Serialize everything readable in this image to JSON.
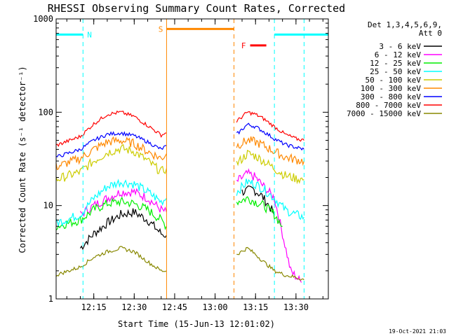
{
  "chart_data": {
    "type": "line",
    "title": "RHESSI Observing Summary Count Rates, Corrected",
    "xlabel": "Start Time (15-Jun-13 12:01:02)",
    "ylabel": "Corrected Count Rate (s⁻¹ detector⁻¹)",
    "y_scale": "log",
    "ylim": [
      1,
      1000
    ],
    "xlim": [
      "12:01:02",
      "13:42:00"
    ],
    "x_ticks": [
      "12:15",
      "12:30",
      "12:45",
      "13:00",
      "13:15",
      "13:30"
    ],
    "y_ticks": [
      "1",
      "10",
      "100",
      "1000"
    ],
    "grid": false,
    "legend_header": [
      "Det 1,3,4,5,6,9,",
      "Att 0"
    ],
    "legend_position": "top-right outside",
    "series": [
      {
        "name": "3 - 6 keV",
        "color": "#000000",
        "x": [
          "12:10",
          "12:15",
          "12:20",
          "12:25",
          "12:30",
          "12:35",
          "12:40",
          "12:42",
          "13:10",
          "13:14",
          "13:17",
          "13:20",
          "13:22"
        ],
        "y": [
          3.5,
          5,
          6.5,
          8,
          8.5,
          7,
          5,
          4.8,
          14,
          15,
          13,
          10,
          8
        ]
      },
      {
        "name": "6 - 12 keV",
        "color": "#ff00ff",
        "x": [
          "12:10",
          "12:15",
          "12:20",
          "12:25",
          "12:30",
          "12:35",
          "12:40",
          "12:42",
          "13:08",
          "13:12",
          "13:15",
          "13:18",
          "13:22",
          "13:25",
          "13:28",
          "13:32"
        ],
        "y": [
          8,
          10,
          12,
          14,
          14,
          12,
          9,
          8.5,
          18,
          22,
          20,
          16,
          12,
          5,
          2,
          1.5
        ]
      },
      {
        "name": "12 - 25 keV",
        "color": "#00ee00",
        "x": [
          "12:01",
          "12:10",
          "12:15",
          "12:20",
          "12:25",
          "12:30",
          "12:35",
          "12:40",
          "12:42",
          "13:08",
          "13:12",
          "13:15",
          "13:18",
          "13:22",
          "13:25"
        ],
        "y": [
          6,
          7,
          9,
          10.5,
          11,
          10.5,
          9,
          7,
          6,
          11,
          12,
          11,
          10,
          8,
          6
        ]
      },
      {
        "name": "25 - 50 keV",
        "color": "#00ffff",
        "x": [
          "12:01",
          "12:10",
          "12:15",
          "12:20",
          "12:25",
          "12:30",
          "12:35",
          "12:40",
          "12:42",
          "13:08",
          "13:12",
          "13:15",
          "13:18",
          "13:22",
          "13:26",
          "13:30",
          "13:33"
        ],
        "y": [
          6.5,
          8,
          12,
          16,
          18,
          17,
          14,
          11,
          12,
          14,
          18,
          17,
          15,
          12,
          9,
          8,
          7.5
        ]
      },
      {
        "name": "50 - 100 keV",
        "color": "#cccc00",
        "x": [
          "12:01",
          "12:10",
          "12:15",
          "12:20",
          "12:25",
          "12:30",
          "12:35",
          "12:40",
          "12:42",
          "13:08",
          "13:12",
          "13:15",
          "13:18",
          "13:22",
          "13:26",
          "13:30",
          "13:33"
        ],
        "y": [
          19,
          23,
          30,
          37,
          41,
          38,
          30,
          23,
          25,
          28,
          36,
          34,
          30,
          25,
          21,
          19.5,
          19
        ]
      },
      {
        "name": "100 - 300 keV",
        "color": "#ff8800",
        "x": [
          "12:01",
          "12:10",
          "12:15",
          "12:20",
          "12:25",
          "12:30",
          "12:35",
          "12:40",
          "12:42",
          "13:08",
          "13:12",
          "13:15",
          "13:18",
          "13:22",
          "13:26",
          "13:30",
          "13:33"
        ],
        "y": [
          26,
          32,
          40,
          48,
          50,
          46,
          38,
          32,
          36,
          44,
          50,
          48,
          44,
          38,
          33,
          31,
          30
        ]
      },
      {
        "name": "300 - 800 keV",
        "color": "#0000ff",
        "x": [
          "12:01",
          "12:10",
          "12:15",
          "12:20",
          "12:25",
          "12:30",
          "12:35",
          "12:40",
          "12:42",
          "13:08",
          "13:12",
          "13:15",
          "13:18",
          "13:22",
          "13:26",
          "13:30",
          "13:33"
        ],
        "y": [
          33,
          40,
          50,
          58,
          60,
          56,
          48,
          40,
          44,
          58,
          74,
          70,
          62,
          52,
          45,
          42,
          40
        ]
      },
      {
        "name": "800 - 7000 keV",
        "color": "#ff0000",
        "x": [
          "12:01",
          "12:10",
          "12:15",
          "12:20",
          "12:25",
          "12:30",
          "12:35",
          "12:40",
          "12:42",
          "13:08",
          "13:12",
          "13:15",
          "13:18",
          "13:22",
          "13:26",
          "13:30",
          "13:33"
        ],
        "y": [
          44,
          55,
          75,
          95,
          100,
          90,
          72,
          57,
          60,
          80,
          100,
          95,
          85,
          70,
          58,
          52,
          50
        ]
      },
      {
        "name": "7000 - 15000 keV",
        "color": "#888800",
        "x": [
          "12:01",
          "12:10",
          "12:15",
          "12:20",
          "12:25",
          "12:30",
          "12:35",
          "12:40",
          "12:42",
          "13:08",
          "13:12",
          "13:15",
          "13:18",
          "13:22",
          "13:26",
          "13:30",
          "13:33"
        ],
        "y": [
          1.8,
          2.2,
          2.8,
          3.2,
          3.5,
          3.2,
          2.5,
          2,
          2,
          3,
          3.5,
          3,
          2.5,
          2,
          1.8,
          1.7,
          1.6
        ]
      }
    ],
    "annotations": [
      {
        "label": "N",
        "color": "#00ffff",
        "kind": "night",
        "solid_bars": [
          {
            "x0": "12:01:02",
            "x1": "12:11",
            "y": 680
          },
          {
            "x0": "13:22",
            "x1": "13:42",
            "y": 680
          }
        ],
        "dashed_lines": [
          "12:11",
          "13:22",
          "13:33"
        ]
      },
      {
        "label": "S",
        "color": "#ff8800",
        "kind": "SAA",
        "solid_bars": [
          {
            "x0": "12:42",
            "x1": "13:07",
            "y": 780
          }
        ],
        "solid_lines": [
          "12:42"
        ],
        "dashed_lines": [
          "13:07"
        ]
      },
      {
        "label": "F",
        "color": "#ff0000",
        "kind": "flare",
        "solid_bars": [
          {
            "x0": "13:13",
            "x1": "13:19",
            "y": 520
          }
        ]
      }
    ],
    "footer_date": "19-Oct-2021 21:03"
  }
}
